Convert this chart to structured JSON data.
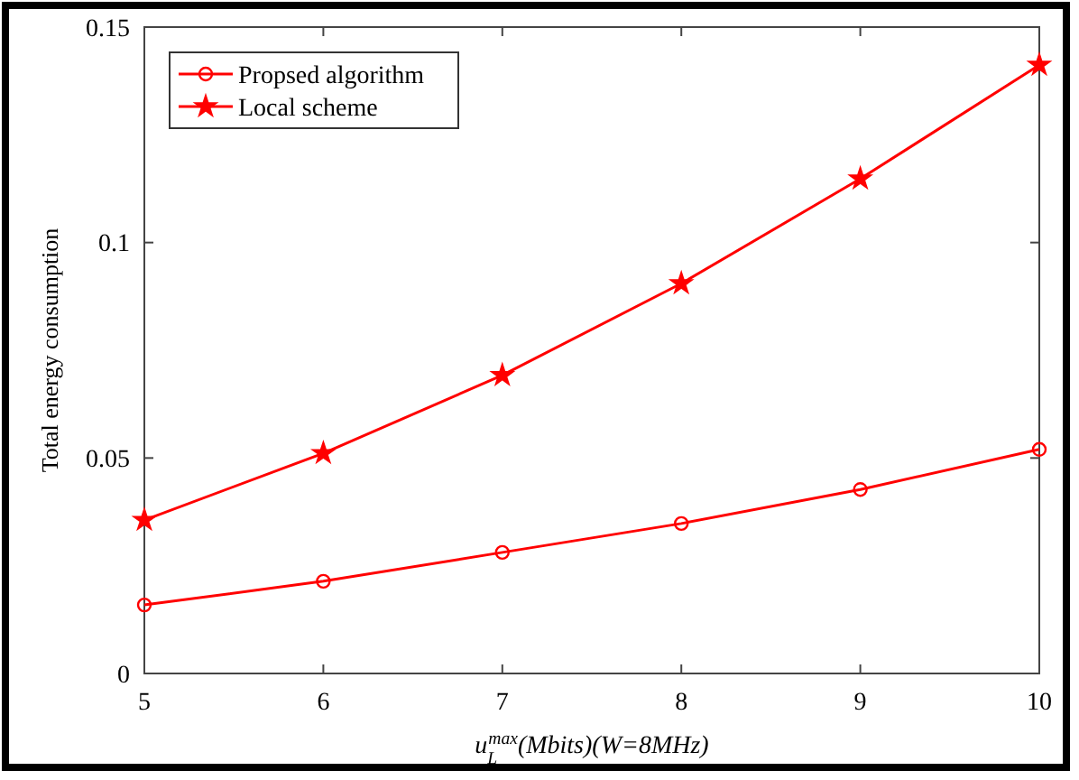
{
  "chart_data": {
    "type": "line",
    "xlabel": "u$_{L}$$^{max}$(Mbits)(W=8MHz)",
    "ylabel": "Total energy consumption",
    "x": [
      5,
      6,
      7,
      8,
      9,
      10
    ],
    "xlim": [
      5,
      10
    ],
    "xticks": [
      5,
      6,
      7,
      8,
      9,
      10
    ],
    "ylim": [
      0,
      0.15
    ],
    "yticks": [
      0,
      0.05,
      0.1,
      0.15
    ],
    "grid": false,
    "legend": "top left",
    "line_style": "solid",
    "series": [
      {
        "name": "Propsed algorithm",
        "color": "#ff0000",
        "marker": "circle",
        "values": [
          0.0159,
          0.0214,
          0.0281,
          0.0348,
          0.0427,
          0.052
        ]
      },
      {
        "name": "Local scheme",
        "color": "#ff0000",
        "marker": "star",
        "values": [
          0.0356,
          0.0511,
          0.0692,
          0.0905,
          0.1148,
          0.1412
        ]
      }
    ]
  }
}
